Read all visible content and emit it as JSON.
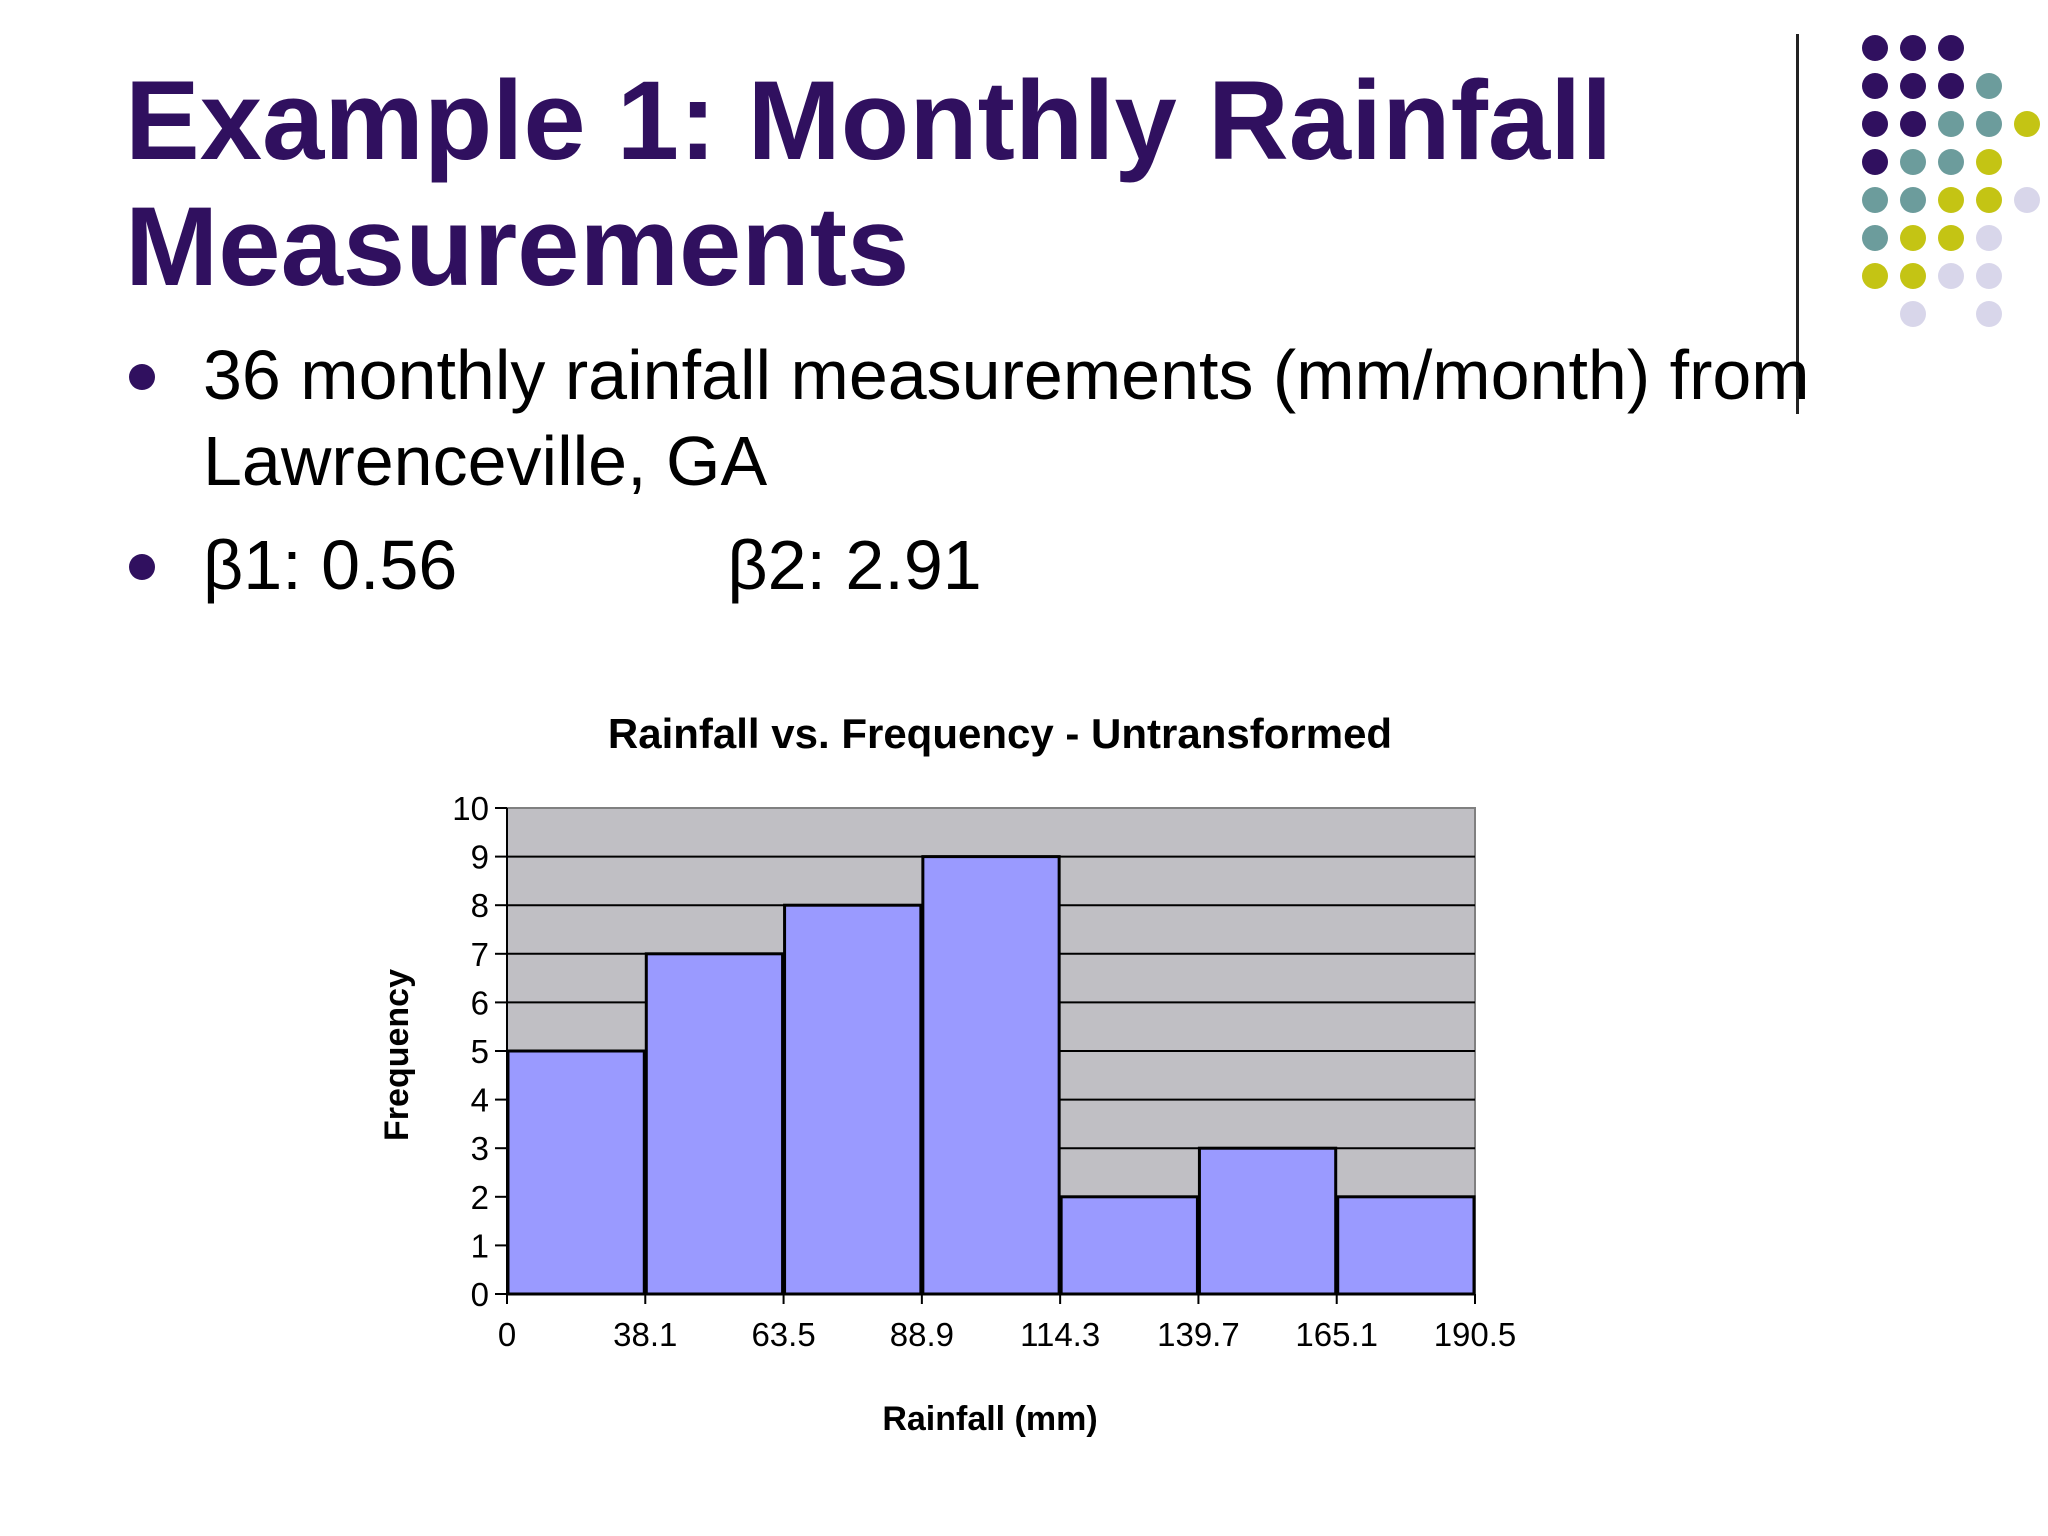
{
  "title": "Example 1: Monthly Rainfall Measurements",
  "colors": {
    "title": "#30105f",
    "bullet": "#30105f",
    "bar_fill": "#9a9aff",
    "plot_bg": "#c0bfc4",
    "dot_purple": "#30105f",
    "dot_teal": "#6c9c9c",
    "dot_yellow": "#c4c414",
    "dot_lavender": "#d8d6ea"
  },
  "bullets": [
    {
      "text": "36 monthly rainfall measurements (mm/month) from Lawrenceville, GA"
    },
    {
      "beta1": "β1: 0.56",
      "beta2": "β2: 2.91"
    }
  ],
  "chart_data": {
    "type": "bar",
    "title": "Rainfall vs. Frequency - Untransformed",
    "xlabel": "Rainfall (mm)",
    "ylabel": "Frequency",
    "bin_edges": [
      0,
      38.1,
      63.5,
      88.9,
      114.3,
      139.7,
      165.1,
      190.5
    ],
    "x_tick_labels": [
      "0",
      "38.1",
      "63.5",
      "88.9",
      "114.3",
      "139.7",
      "165.1",
      "190.5"
    ],
    "values": [
      5,
      7,
      8,
      9,
      2,
      3,
      2
    ],
    "ylim": [
      0,
      10
    ],
    "y_ticks": [
      0,
      1,
      2,
      3,
      4,
      5,
      6,
      7,
      8,
      9,
      10
    ],
    "grid": true,
    "legend": "none"
  }
}
